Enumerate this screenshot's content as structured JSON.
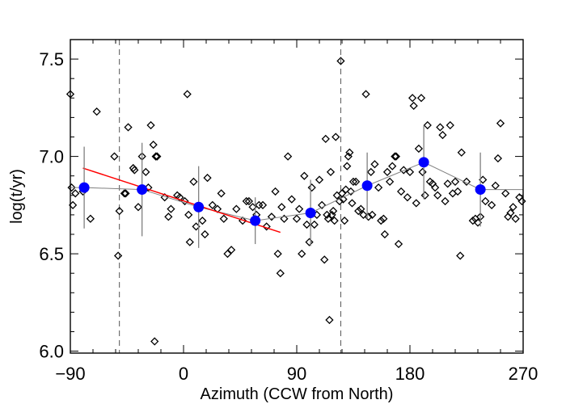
{
  "chart_data": {
    "type": "scatter",
    "xlabel": "Azimuth (CCW from North)",
    "ylabel": "log(t/yr)",
    "xlim": [
      -90,
      270
    ],
    "ylim": [
      5.99,
      7.6
    ],
    "x_ticks": [
      -90,
      0,
      90,
      180,
      270
    ],
    "x_tick_labels": [
      "−90",
      "0",
      "90",
      "180",
      "270"
    ],
    "y_ticks": [
      6.0,
      6.5,
      7.0,
      7.5
    ],
    "y_tick_labels": [
      "6.0",
      "6.5",
      "7.0",
      "7.5"
    ],
    "grid": false,
    "vertical_dashed_lines_x": [
      -51,
      125
    ],
    "series": [
      {
        "marker": "diamond",
        "color": "#000000",
        "points": [
          [
            -90,
            7.32
          ],
          [
            -89,
            6.84
          ],
          [
            -88,
            6.75
          ],
          [
            -86,
            6.81
          ],
          [
            -80,
            6.82
          ],
          [
            -78,
            6.84
          ],
          [
            -74,
            6.68
          ],
          [
            -69,
            7.23
          ],
          [
            -55,
            7.0
          ],
          [
            -52,
            6.49
          ],
          [
            -51,
            6.72
          ],
          [
            -47,
            6.81
          ],
          [
            -46,
            6.81
          ],
          [
            -44,
            7.15
          ],
          [
            -40,
            6.94
          ],
          [
            -39,
            6.93
          ],
          [
            -36,
            6.74
          ],
          [
            -33,
            7.0
          ],
          [
            -30,
            6.92
          ],
          [
            -28,
            6.84
          ],
          [
            -26,
            7.16
          ],
          [
            -24,
            7.06
          ],
          [
            -22,
            7.0
          ],
          [
            -22,
            7.0
          ],
          [
            -21,
            7.0
          ],
          [
            -23,
            6.05
          ],
          [
            -15,
            6.79
          ],
          [
            -12,
            6.69
          ],
          [
            -10,
            6.73
          ],
          [
            -5,
            6.8
          ],
          [
            -3,
            6.79
          ],
          [
            1,
            6.77
          ],
          [
            3,
            7.32
          ],
          [
            4,
            6.7
          ],
          [
            5,
            6.56
          ],
          [
            8,
            6.87
          ],
          [
            10,
            6.64
          ],
          [
            15,
            6.67
          ],
          [
            17,
            6.6
          ],
          [
            19,
            6.89
          ],
          [
            23,
            6.75
          ],
          [
            27,
            6.73
          ],
          [
            30,
            6.81
          ],
          [
            32,
            6.68
          ],
          [
            35,
            6.5
          ],
          [
            38,
            6.52
          ],
          [
            42,
            6.73
          ],
          [
            47,
            6.67
          ],
          [
            50,
            6.77
          ],
          [
            52,
            6.77
          ],
          [
            55,
            6.74
          ],
          [
            58,
            6.7
          ],
          [
            60,
            6.75
          ],
          [
            63,
            6.75
          ],
          [
            66,
            6.64
          ],
          [
            70,
            6.69
          ],
          [
            73,
            6.82
          ],
          [
            75,
            6.5
          ],
          [
            77,
            6.4
          ],
          [
            78,
            6.74
          ],
          [
            80,
            6.68
          ],
          [
            83,
            7.0
          ],
          [
            86,
            6.78
          ],
          [
            90,
            6.68
          ],
          [
            92,
            6.73
          ],
          [
            94,
            6.5
          ],
          [
            96,
            6.9
          ],
          [
            98,
            6.65
          ],
          [
            100,
            6.56
          ],
          [
            102,
            6.84
          ],
          [
            104,
            6.65
          ],
          [
            106,
            6.7
          ],
          [
            108,
            6.88
          ],
          [
            110,
            6.75
          ],
          [
            112,
            6.47
          ],
          [
            113,
            7.09
          ],
          [
            114,
            6.7
          ],
          [
            115,
            6.68
          ],
          [
            116,
            6.16
          ],
          [
            117,
            6.92
          ],
          [
            118,
            6.7
          ],
          [
            119,
            6.72
          ],
          [
            120,
            6.67
          ],
          [
            121,
            7.1
          ],
          [
            122,
            6.8
          ],
          [
            124,
            6.77
          ],
          [
            125,
            7.49
          ],
          [
            126,
            6.81
          ],
          [
            127,
            6.78
          ],
          [
            128,
            6.67
          ],
          [
            129,
            6.83
          ],
          [
            130,
            6.95
          ],
          [
            131,
            7.0
          ],
          [
            132,
            7.02
          ],
          [
            133,
            6.82
          ],
          [
            134,
            6.76
          ],
          [
            135,
            6.87
          ],
          [
            137,
            6.87
          ],
          [
            139,
            6.72
          ],
          [
            141,
            6.73
          ],
          [
            143,
            6.7
          ],
          [
            145,
            7.32
          ],
          [
            147,
            6.69
          ],
          [
            149,
            6.92
          ],
          [
            150,
            6.7
          ],
          [
            152,
            6.96
          ],
          [
            155,
            6.84
          ],
          [
            157,
            6.67
          ],
          [
            159,
            6.68
          ],
          [
            160,
            6.6
          ],
          [
            162,
            6.92
          ],
          [
            164,
            6.87
          ],
          [
            166,
            6.95
          ],
          [
            168,
            7.0
          ],
          [
            169,
            7.0
          ],
          [
            171,
            6.55
          ],
          [
            173,
            6.82
          ],
          [
            175,
            6.93
          ],
          [
            178,
            6.79
          ],
          [
            180,
            6.92
          ],
          [
            182,
            7.3
          ],
          [
            183,
            7.26
          ],
          [
            185,
            6.76
          ],
          [
            187,
            7.04
          ],
          [
            189,
            7.3
          ],
          [
            190,
            6.92
          ],
          [
            192,
            6.8
          ],
          [
            194,
            7.16
          ],
          [
            196,
            6.87
          ],
          [
            198,
            6.86
          ],
          [
            200,
            6.84
          ],
          [
            202,
            6.8
          ],
          [
            204,
            7.15
          ],
          [
            206,
            7.11
          ],
          [
            208,
            6.77
          ],
          [
            210,
            6.86
          ],
          [
            212,
            7.16
          ],
          [
            214,
            6.81
          ],
          [
            216,
            6.87
          ],
          [
            218,
            6.82
          ],
          [
            220,
            6.49
          ],
          [
            221,
            7.02
          ],
          [
            225,
            6.87
          ],
          [
            230,
            6.67
          ],
          [
            232,
            6.68
          ],
          [
            234,
            6.66
          ],
          [
            236,
            6.69
          ],
          [
            238,
            6.88
          ],
          [
            240,
            6.77
          ],
          [
            245,
            6.75
          ],
          [
            248,
            6.85
          ],
          [
            250,
            6.99
          ],
          [
            252,
            7.17
          ],
          [
            256,
            6.81
          ],
          [
            258,
            6.69
          ],
          [
            260,
            6.71
          ],
          [
            262,
            6.74
          ],
          [
            264,
            6.68
          ],
          [
            267,
            6.79
          ],
          [
            269,
            6.77
          ]
        ]
      },
      {
        "marker": "filled-circle",
        "color": "#0000ff",
        "points": [
          [
            -79,
            6.84
          ],
          [
            -33,
            6.83
          ],
          [
            12,
            6.74
          ],
          [
            57,
            6.67
          ],
          [
            101,
            6.71
          ],
          [
            146,
            6.85
          ],
          [
            191,
            6.97
          ],
          [
            236,
            6.83
          ]
        ],
        "error_bars": [
          0.21,
          0.24,
          0.21,
          0.12,
          0.17,
          0.17,
          0.19,
          0.19
        ]
      }
    ],
    "binned_line": {
      "color": "#808080",
      "points": [
        [
          -90,
          6.84
        ],
        [
          -79,
          6.84
        ],
        [
          -33,
          6.83
        ],
        [
          12,
          6.74
        ],
        [
          57,
          6.67
        ],
        [
          101,
          6.71
        ],
        [
          146,
          6.85
        ],
        [
          191,
          6.97
        ],
        [
          236,
          6.83
        ],
        [
          270,
          6.83
        ]
      ]
    },
    "fit_line": {
      "color": "#ff0000",
      "points": [
        [
          -80,
          6.94
        ],
        [
          77,
          6.61
        ]
      ]
    }
  }
}
